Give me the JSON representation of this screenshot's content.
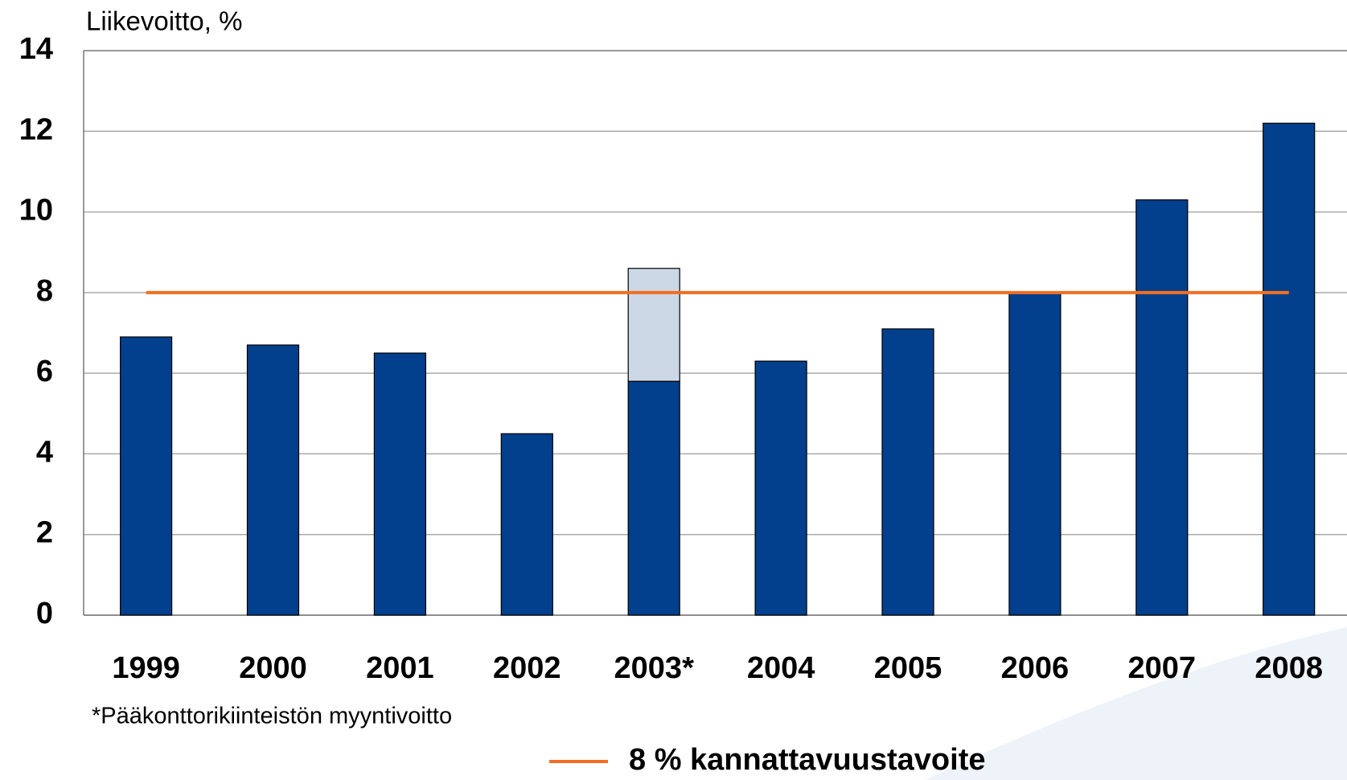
{
  "chart_data": {
    "type": "bar",
    "stacked": true,
    "y_label": "Liikevoitto, %",
    "categories": [
      "1999",
      "2000",
      "2001",
      "2002",
      "2003*",
      "2004",
      "2005",
      "2006",
      "2007",
      "2008"
    ],
    "series": [
      {
        "color": "#023f8c",
        "values": [
          6.9,
          6.7,
          6.5,
          4.5,
          5.8,
          6.3,
          7.1,
          8.0,
          10.3,
          12.2
        ]
      },
      {
        "color": "#cdd8e7",
        "values": [
          null,
          null,
          null,
          null,
          2.8,
          null,
          null,
          null,
          null,
          null
        ]
      },
      {
        "name": "8 % kannattavuustavoite",
        "type": "line",
        "color": "#f36f21",
        "values": [
          8,
          8,
          8,
          8,
          8,
          8,
          8,
          8,
          8,
          8
        ]
      }
    ],
    "ylim": [
      0,
      14
    ],
    "yticks": [
      0,
      2,
      4,
      6,
      8,
      10,
      12,
      14
    ],
    "grid": true,
    "annotation": "*Pääkonttorikiinteistön myyntivoitto"
  }
}
